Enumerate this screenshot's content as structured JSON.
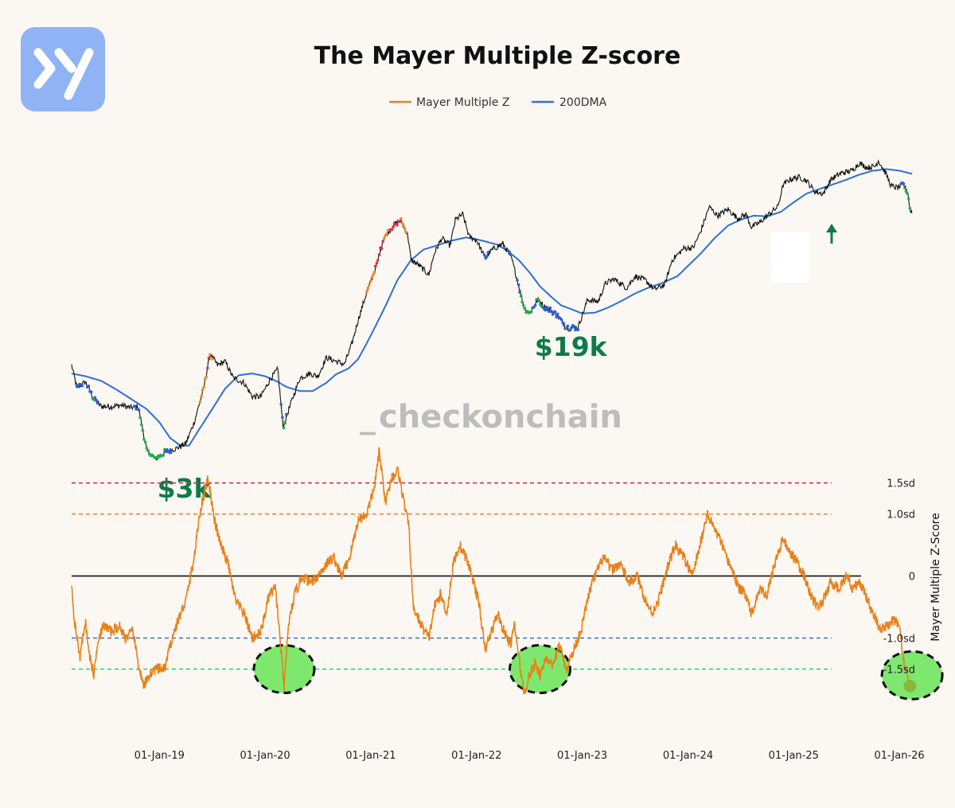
{
  "logo": {
    "glyph": "y",
    "color": "#8fb3f4"
  },
  "watermark": {
    "underscore": "_",
    "text": "checkonchain",
    "underscore_color": "#f3c89a"
  },
  "chart_data": {
    "type": "line",
    "title": "The Mayer Multiple Z-score",
    "legend": [
      {
        "name": "Mayer Multiple Z",
        "color": "#e8811a"
      },
      {
        "name": "200DMA",
        "color": "#2f6fd6"
      }
    ],
    "x_ticks": [
      "01-Jan-19",
      "01-Jan-20",
      "01-Jan-21",
      "01-Jan-22",
      "01-Jan-23",
      "01-Jan-24",
      "01-Jan-25",
      "01-Jan-26"
    ],
    "x_range": [
      2018.17,
      2026.3
    ],
    "price_panel": {
      "scale": "log",
      "price_anchors": [
        [
          2018.17,
          10500
        ],
        [
          2018.22,
          8000
        ],
        [
          2018.3,
          8600
        ],
        [
          2018.38,
          7000
        ],
        [
          2018.45,
          6400
        ],
        [
          2018.55,
          6400
        ],
        [
          2018.65,
          6500
        ],
        [
          2018.72,
          6300
        ],
        [
          2018.8,
          6400
        ],
        [
          2018.88,
          3800
        ],
        [
          2018.96,
          3400
        ],
        [
          2019.05,
          3700
        ],
        [
          2019.15,
          3850
        ],
        [
          2019.25,
          4100
        ],
        [
          2019.33,
          5300
        ],
        [
          2019.42,
          8000
        ],
        [
          2019.48,
          12000
        ],
        [
          2019.55,
          10500
        ],
        [
          2019.62,
          11000
        ],
        [
          2019.7,
          9000
        ],
        [
          2019.8,
          8500
        ],
        [
          2019.88,
          7200
        ],
        [
          2019.96,
          7200
        ],
        [
          2020.05,
          8900
        ],
        [
          2020.12,
          10000
        ],
        [
          2020.17,
          5000
        ],
        [
          2020.25,
          6800
        ],
        [
          2020.33,
          9000
        ],
        [
          2020.42,
          9500
        ],
        [
          2020.5,
          9200
        ],
        [
          2020.58,
          11500
        ],
        [
          2020.67,
          11000
        ],
        [
          2020.75,
          10600
        ],
        [
          2020.82,
          13500
        ],
        [
          2020.88,
          18000
        ],
        [
          2020.95,
          24000
        ],
        [
          2021.05,
          34000
        ],
        [
          2021.12,
          48000
        ],
        [
          2021.2,
          55000
        ],
        [
          2021.28,
          60000
        ],
        [
          2021.35,
          50000
        ],
        [
          2021.38,
          37000
        ],
        [
          2021.45,
          35000
        ],
        [
          2021.55,
          31000
        ],
        [
          2021.6,
          40000
        ],
        [
          2021.67,
          48000
        ],
        [
          2021.75,
          44000
        ],
        [
          2021.8,
          60000
        ],
        [
          2021.87,
          64000
        ],
        [
          2021.93,
          49000
        ],
        [
          2022.0,
          47000
        ],
        [
          2022.08,
          38000
        ],
        [
          2022.15,
          42000
        ],
        [
          2022.25,
          45000
        ],
        [
          2022.33,
          38000
        ],
        [
          2022.38,
          30000
        ],
        [
          2022.45,
          21000
        ],
        [
          2022.5,
          19500
        ],
        [
          2022.58,
          23000
        ],
        [
          2022.65,
          21000
        ],
        [
          2022.75,
          19500
        ],
        [
          2022.85,
          16500
        ],
        [
          2022.96,
          16500
        ],
        [
          2023.05,
          23000
        ],
        [
          2023.15,
          22500
        ],
        [
          2023.22,
          28000
        ],
        [
          2023.3,
          29500
        ],
        [
          2023.42,
          26500
        ],
        [
          2023.5,
          30500
        ],
        [
          2023.6,
          29000
        ],
        [
          2023.68,
          26000
        ],
        [
          2023.78,
          27500
        ],
        [
          2023.85,
          37000
        ],
        [
          2023.96,
          42500
        ],
        [
          2024.05,
          43000
        ],
        [
          2024.12,
          52000
        ],
        [
          2024.2,
          70000
        ],
        [
          2024.28,
          63000
        ],
        [
          2024.38,
          68000
        ],
        [
          2024.47,
          61000
        ],
        [
          2024.55,
          64000
        ],
        [
          2024.6,
          55000
        ],
        [
          2024.68,
          58000
        ],
        [
          2024.75,
          63000
        ],
        [
          2024.85,
          70000
        ],
        [
          2024.9,
          91000
        ],
        [
          2024.96,
          97000
        ],
        [
          2025.05,
          100000
        ],
        [
          2025.12,
          96000
        ],
        [
          2025.2,
          84000
        ],
        [
          2025.28,
          82000
        ],
        [
          2025.35,
          97000
        ],
        [
          2025.45,
          105000
        ],
        [
          2025.55,
          108000
        ],
        [
          2025.62,
          118000
        ],
        [
          2025.7,
          112000
        ],
        [
          2025.77,
          114000
        ],
        [
          2025.8,
          122000
        ],
        [
          2025.87,
          105000
        ],
        [
          2025.92,
          90000
        ],
        [
          2025.98,
          88000
        ],
        [
          2026.04,
          91000
        ],
        [
          2026.08,
          83000
        ],
        [
          2026.1,
          68000
        ],
        [
          2026.12,
          65000
        ]
      ],
      "dma_anchors": [
        [
          2018.17,
          9500
        ],
        [
          2018.3,
          9200
        ],
        [
          2018.45,
          8700
        ],
        [
          2018.6,
          7800
        ],
        [
          2018.75,
          6900
        ],
        [
          2018.88,
          6200
        ],
        [
          2019.0,
          5300
        ],
        [
          2019.1,
          4400
        ],
        [
          2019.2,
          4000
        ],
        [
          2019.28,
          4000
        ],
        [
          2019.38,
          4900
        ],
        [
          2019.5,
          6200
        ],
        [
          2019.62,
          7900
        ],
        [
          2019.75,
          9300
        ],
        [
          2019.88,
          9500
        ],
        [
          2020.0,
          9200
        ],
        [
          2020.12,
          8600
        ],
        [
          2020.2,
          8100
        ],
        [
          2020.33,
          7700
        ],
        [
          2020.45,
          7700
        ],
        [
          2020.58,
          8500
        ],
        [
          2020.67,
          9400
        ],
        [
          2020.79,
          10100
        ],
        [
          2020.88,
          11300
        ],
        [
          2020.96,
          13600
        ],
        [
          2021.05,
          17000
        ],
        [
          2021.15,
          22000
        ],
        [
          2021.25,
          29000
        ],
        [
          2021.38,
          37000
        ],
        [
          2021.5,
          42000
        ],
        [
          2021.62,
          44000
        ],
        [
          2021.75,
          46500
        ],
        [
          2021.9,
          48500
        ],
        [
          2022.0,
          47500
        ],
        [
          2022.1,
          46000
        ],
        [
          2022.2,
          44500
        ],
        [
          2022.3,
          41000
        ],
        [
          2022.4,
          37000
        ],
        [
          2022.5,
          32000
        ],
        [
          2022.6,
          27000
        ],
        [
          2022.7,
          24000
        ],
        [
          2022.8,
          21500
        ],
        [
          2022.9,
          20500
        ],
        [
          2023.0,
          19500
        ],
        [
          2023.12,
          19700
        ],
        [
          2023.25,
          21000
        ],
        [
          2023.38,
          22800
        ],
        [
          2023.5,
          24800
        ],
        [
          2023.62,
          26500
        ],
        [
          2023.75,
          28000
        ],
        [
          2023.9,
          30500
        ],
        [
          2024.0,
          34500
        ],
        [
          2024.12,
          40000
        ],
        [
          2024.25,
          48000
        ],
        [
          2024.38,
          56000
        ],
        [
          2024.5,
          60000
        ],
        [
          2024.62,
          63000
        ],
        [
          2024.75,
          62500
        ],
        [
          2024.88,
          66000
        ],
        [
          2025.0,
          74000
        ],
        [
          2025.12,
          82000
        ],
        [
          2025.25,
          87000
        ],
        [
          2025.38,
          92000
        ],
        [
          2025.5,
          97000
        ],
        [
          2025.62,
          103000
        ],
        [
          2025.75,
          108000
        ],
        [
          2025.88,
          110000
        ],
        [
          2026.0,
          108000
        ],
        [
          2026.12,
          104000
        ]
      ],
      "annotations": [
        {
          "label": "$3k",
          "x": 2018.98,
          "price": 3200,
          "color": "#0e7a4a"
        },
        {
          "label": "$19k",
          "x": 2022.55,
          "price": 17500,
          "color": "#0e7a4a"
        }
      ]
    },
    "zscore_panel": {
      "ylabel": "Mayer Multiple Z-Score",
      "y_ticks": [
        "1.5sd",
        "1.0sd",
        "0",
        "-1.0sd",
        "-1.5sd"
      ],
      "y_range": [
        -2.2,
        2.1
      ],
      "levels": [
        {
          "label": "1.5sd",
          "value": 1.5,
          "color": "#e0304a",
          "dashed": true
        },
        {
          "label": "1.0sd",
          "value": 1.0,
          "color": "#ef8a2e",
          "dashed": true
        },
        {
          "label": "0",
          "value": 0,
          "color": "#111111",
          "dashed": false
        },
        {
          "label": "-1.0sd",
          "value": -1.0,
          "color": "#3a6fd8",
          "dashed": true
        },
        {
          "label": "-1.5sd",
          "value": -1.5,
          "color": "#2ecc71",
          "dashed": true
        }
      ],
      "z_anchors": [
        [
          2018.17,
          -0.1
        ],
        [
          2018.19,
          -0.6
        ],
        [
          2018.22,
          -1.0
        ],
        [
          2018.25,
          -1.3
        ],
        [
          2018.3,
          -0.7
        ],
        [
          2018.33,
          -1.2
        ],
        [
          2018.38,
          -1.6
        ],
        [
          2018.42,
          -1.0
        ],
        [
          2018.48,
          -0.8
        ],
        [
          2018.55,
          -0.9
        ],
        [
          2018.62,
          -0.8
        ],
        [
          2018.68,
          -1.0
        ],
        [
          2018.75,
          -0.9
        ],
        [
          2018.8,
          -1.4
        ],
        [
          2018.85,
          -1.8
        ],
        [
          2018.9,
          -1.6
        ],
        [
          2018.96,
          -1.5
        ],
        [
          2019.05,
          -1.5
        ],
        [
          2019.12,
          -1.0
        ],
        [
          2019.18,
          -0.7
        ],
        [
          2019.25,
          -0.4
        ],
        [
          2019.33,
          0.3
        ],
        [
          2019.38,
          1.0
        ],
        [
          2019.46,
          1.6
        ],
        [
          2019.52,
          0.9
        ],
        [
          2019.58,
          0.5
        ],
        [
          2019.65,
          0.2
        ],
        [
          2019.72,
          -0.4
        ],
        [
          2019.8,
          -0.6
        ],
        [
          2019.88,
          -1.0
        ],
        [
          2019.96,
          -0.9
        ],
        [
          2020.04,
          -0.3
        ],
        [
          2020.1,
          -0.2
        ],
        [
          2020.15,
          -1.2
        ],
        [
          2020.18,
          -1.8
        ],
        [
          2020.22,
          -0.8
        ],
        [
          2020.28,
          -0.3
        ],
        [
          2020.35,
          0.0
        ],
        [
          2020.42,
          -0.1
        ],
        [
          2020.5,
          0.0
        ],
        [
          2020.58,
          0.2
        ],
        [
          2020.65,
          0.3
        ],
        [
          2020.72,
          0.0
        ],
        [
          2020.8,
          0.3
        ],
        [
          2020.88,
          0.9
        ],
        [
          2020.96,
          1.0
        ],
        [
          2021.03,
          1.4
        ],
        [
          2021.08,
          2.0
        ],
        [
          2021.14,
          1.2
        ],
        [
          2021.2,
          1.6
        ],
        [
          2021.26,
          1.7
        ],
        [
          2021.3,
          1.3
        ],
        [
          2021.36,
          0.8
        ],
        [
          2021.4,
          -0.5
        ],
        [
          2021.48,
          -0.8
        ],
        [
          2021.55,
          -1.0
        ],
        [
          2021.6,
          -0.5
        ],
        [
          2021.66,
          -0.3
        ],
        [
          2021.72,
          -0.6
        ],
        [
          2021.78,
          0.2
        ],
        [
          2021.84,
          0.5
        ],
        [
          2021.9,
          0.3
        ],
        [
          2021.96,
          0.0
        ],
        [
          2022.03,
          -0.5
        ],
        [
          2022.08,
          -1.2
        ],
        [
          2022.14,
          -0.9
        ],
        [
          2022.2,
          -0.6
        ],
        [
          2022.26,
          -0.9
        ],
        [
          2022.32,
          -1.1
        ],
        [
          2022.36,
          -0.8
        ],
        [
          2022.4,
          -1.3
        ],
        [
          2022.45,
          -1.9
        ],
        [
          2022.5,
          -1.6
        ],
        [
          2022.56,
          -1.4
        ],
        [
          2022.6,
          -1.6
        ],
        [
          2022.66,
          -1.3
        ],
        [
          2022.72,
          -1.5
        ],
        [
          2022.78,
          -1.1
        ],
        [
          2022.85,
          -1.5
        ],
        [
          2022.92,
          -1.2
        ],
        [
          2023.0,
          -0.8
        ],
        [
          2023.06,
          -0.3
        ],
        [
          2023.12,
          0.0
        ],
        [
          2023.2,
          0.3
        ],
        [
          2023.28,
          0.1
        ],
        [
          2023.36,
          0.2
        ],
        [
          2023.44,
          -0.1
        ],
        [
          2023.52,
          0.0
        ],
        [
          2023.6,
          -0.4
        ],
        [
          2023.66,
          -0.6
        ],
        [
          2023.72,
          -0.4
        ],
        [
          2023.8,
          0.1
        ],
        [
          2023.88,
          0.5
        ],
        [
          2023.96,
          0.3
        ],
        [
          2024.04,
          0.0
        ],
        [
          2024.1,
          0.4
        ],
        [
          2024.18,
          1.0
        ],
        [
          2024.24,
          0.8
        ],
        [
          2024.3,
          0.6
        ],
        [
          2024.36,
          0.3
        ],
        [
          2024.42,
          0.1
        ],
        [
          2024.48,
          -0.2
        ],
        [
          2024.55,
          -0.3
        ],
        [
          2024.6,
          -0.6
        ],
        [
          2024.68,
          -0.2
        ],
        [
          2024.75,
          -0.3
        ],
        [
          2024.82,
          0.2
        ],
        [
          2024.9,
          0.6
        ],
        [
          2024.96,
          0.4
        ],
        [
          2025.04,
          0.2
        ],
        [
          2025.1,
          0.0
        ],
        [
          2025.16,
          -0.3
        ],
        [
          2025.22,
          -0.5
        ],
        [
          2025.28,
          -0.4
        ],
        [
          2025.35,
          -0.1
        ],
        [
          2025.42,
          -0.2
        ],
        [
          2025.5,
          0.0
        ],
        [
          2025.56,
          -0.2
        ],
        [
          2025.62,
          -0.1
        ],
        [
          2025.68,
          -0.3
        ],
        [
          2025.75,
          -0.6
        ],
        [
          2025.82,
          -0.9
        ],
        [
          2025.88,
          -0.8
        ],
        [
          2025.95,
          -0.7
        ],
        [
          2026.0,
          -0.8
        ],
        [
          2026.05,
          -1.5
        ],
        [
          2026.1,
          -1.7
        ]
      ],
      "highlights": [
        {
          "x": 2020.18,
          "z": -1.5
        },
        {
          "x": 2022.6,
          "z": -1.5
        },
        {
          "x": 2026.12,
          "z": -1.6
        }
      ]
    }
  }
}
